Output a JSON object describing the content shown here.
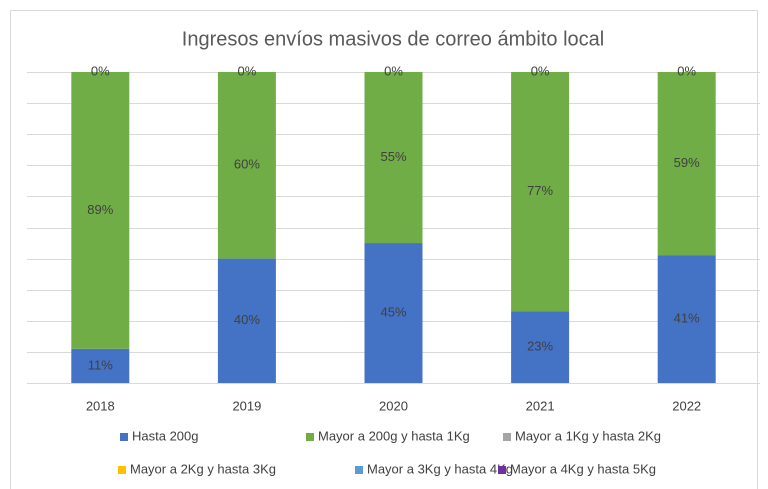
{
  "chart_data": {
    "type": "stacked_bar",
    "title": "Ingresos envíos masivos de correo ámbito local",
    "categories": [
      "2018",
      "2019",
      "2020",
      "2021",
      "2022"
    ],
    "series": [
      {
        "name": "Hasta 200g",
        "color": "#4472c4",
        "values": [
          11,
          40,
          45,
          23,
          41
        ],
        "value_labels": [
          "11%",
          "40%",
          "45%",
          "23%",
          "41%"
        ]
      },
      {
        "name": "Mayor a 200g y hasta 1Kg",
        "color": "#70ad47",
        "values": [
          89,
          60,
          55,
          77,
          59
        ],
        "value_labels": [
          "89%",
          "60%",
          "55%",
          "77%",
          "59%"
        ]
      },
      {
        "name": "Mayor a 1Kg y hasta 2Kg",
        "color": "#a5a5a5",
        "values": [
          0,
          0,
          0,
          0,
          0
        ]
      },
      {
        "name": "Mayor a 2Kg y hasta 3Kg",
        "color": "#ffc000",
        "values": [
          0,
          0,
          0,
          0,
          0
        ]
      },
      {
        "name": "Mayor a 3Kg y hasta 4Kg",
        "color": "#5b9bd5",
        "values": [
          0,
          0,
          0,
          0,
          0
        ]
      },
      {
        "name": "Mayor a 4Kg y hasta 5Kg",
        "color": "#7030a0",
        "values": [
          0,
          0,
          0,
          0,
          0
        ],
        "value_labels": [
          "0%",
          "0%",
          "0%",
          "0%",
          "0%"
        ]
      }
    ],
    "ylim": [
      0,
      100
    ],
    "yticks": [
      0,
      10,
      20,
      30,
      40,
      50,
      60,
      70,
      80,
      90,
      100
    ],
    "grid": true,
    "legend": "bottom"
  }
}
